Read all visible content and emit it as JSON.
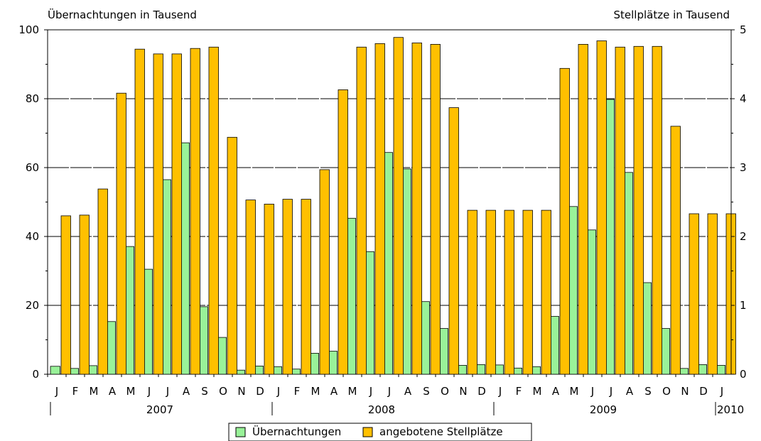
{
  "chart_data": {
    "type": "bar",
    "left_axis_title": "Übernachtungen in Tausend",
    "right_axis_title": "Stellplätze in Tausend",
    "categories": [
      "J",
      "F",
      "M",
      "A",
      "M",
      "J",
      "J",
      "A",
      "S",
      "O",
      "N",
      "D",
      "J",
      "F",
      "M",
      "A",
      "M",
      "J",
      "J",
      "A",
      "S",
      "O",
      "N",
      "D",
      "J",
      "F",
      "M",
      "A",
      "M",
      "J",
      "J",
      "A",
      "S",
      "O",
      "N",
      "D",
      "J"
    ],
    "years": [
      {
        "label": "2007",
        "start": 0,
        "count": 12
      },
      {
        "label": "2008",
        "start": 12,
        "count": 12
      },
      {
        "label": "2009",
        "start": 24,
        "count": 12
      },
      {
        "label": "2010",
        "start": 36,
        "count": 1
      }
    ],
    "left_axis": {
      "min": 0,
      "max": 100,
      "ticks": [
        0,
        20,
        40,
        60,
        80,
        100
      ]
    },
    "right_axis": {
      "min": 0,
      "max": 5,
      "ticks": [
        0,
        1,
        2,
        3,
        4,
        5
      ]
    },
    "grid": true,
    "legend_position": "bottom",
    "series": [
      {
        "name": "Übernachtungen",
        "axis": "left",
        "color": "#99f299",
        "values": [
          2.3,
          1.7,
          2.5,
          15.3,
          37.1,
          30.5,
          56.5,
          67.2,
          19.6,
          10.7,
          1.2,
          2.4,
          2.2,
          1.5,
          6.1,
          6.7,
          45.3,
          35.6,
          64.4,
          59.6,
          21.1,
          13.3,
          2.6,
          2.8,
          2.7,
          1.8,
          2.2,
          16.8,
          48.7,
          41.9,
          79.8,
          58.6,
          26.6,
          13.3,
          1.7,
          2.8,
          2.6
        ]
      },
      {
        "name": "angebotene Stellplätze",
        "axis": "right",
        "color": "#ffc000",
        "values": [
          2.3,
          2.31,
          2.69,
          4.08,
          4.72,
          4.65,
          4.65,
          4.73,
          4.75,
          3.44,
          2.53,
          2.47,
          2.54,
          2.54,
          2.97,
          4.13,
          4.75,
          4.8,
          4.89,
          4.81,
          4.79,
          3.87,
          2.38,
          2.38,
          2.38,
          2.38,
          2.38,
          4.44,
          4.79,
          4.84,
          4.75,
          4.76,
          4.76,
          3.6,
          2.33,
          2.33,
          2.33
        ]
      }
    ]
  }
}
